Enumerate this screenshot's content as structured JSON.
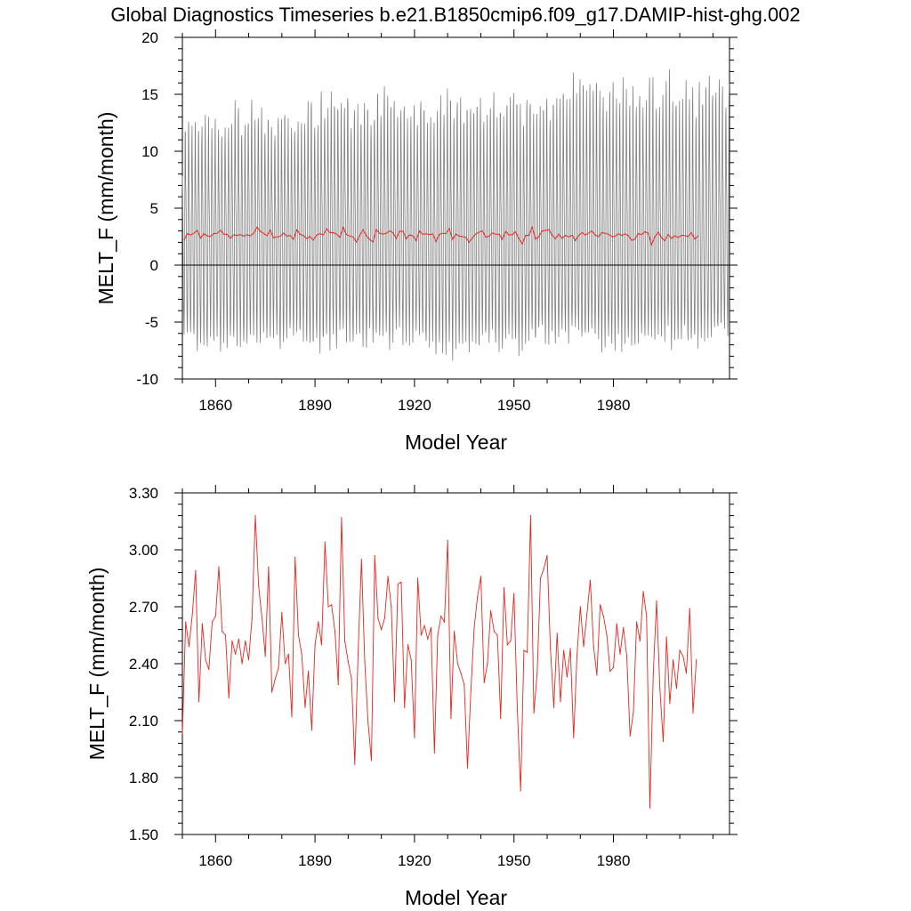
{
  "title": "Global Diagnostics Timeseries b.e21.B1850cmip6.f09_g17.DAMIP-hist-ghg.002",
  "chart_data": [
    {
      "type": "line",
      "xlabel": "Model Year",
      "ylabel": "MELT_F (mm/month)",
      "xlim": [
        1850,
        2015
      ],
      "ylim": [
        -10,
        20
      ],
      "x_ticks": [
        "1860",
        "1890",
        "1920",
        "1950",
        "1980"
      ],
      "y_ticks": [
        "-10",
        "-5",
        "0",
        "5",
        "10",
        "15",
        "20"
      ],
      "zero_line": true,
      "series": [
        {
          "color": "#808080",
          "style": "monthly values (seasonal cycle)",
          "approx_range": [
            -8.6,
            17.4
          ],
          "peaks_by_decade_start": [
            {
              "year": 1850,
              "max": 13.0,
              "min": -7.4
            },
            {
              "year": 1860,
              "max": 13.5,
              "min": -7.2
            },
            {
              "year": 1870,
              "max": 14.5,
              "min": -7.3
            },
            {
              "year": 1880,
              "max": 13.8,
              "min": -7.4
            },
            {
              "year": 1890,
              "max": 14.8,
              "min": -7.5
            },
            {
              "year": 1900,
              "max": 15.3,
              "min": -7.2
            },
            {
              "year": 1910,
              "max": 15.4,
              "min": -7.0
            },
            {
              "year": 1920,
              "max": 14.3,
              "min": -7.0
            },
            {
              "year": 1930,
              "max": 15.0,
              "min": -8.6
            },
            {
              "year": 1940,
              "max": 15.0,
              "min": -7.5
            },
            {
              "year": 1950,
              "max": 15.5,
              "min": -8.2
            },
            {
              "year": 1960,
              "max": 15.5,
              "min": -6.7
            },
            {
              "year": 1970,
              "max": 17.3,
              "min": -7.0
            },
            {
              "year": 1980,
              "max": 16.7,
              "min": -7.8
            },
            {
              "year": 1990,
              "max": 17.0,
              "min": -6.8
            },
            {
              "year": 2000,
              "max": 16.3,
              "min": -7.0
            }
          ]
        },
        {
          "color": "#e8251e",
          "style": "annual mean",
          "ref": "annual_means"
        }
      ]
    },
    {
      "type": "line",
      "xlabel": "Model Year",
      "ylabel": "MELT_F (mm/month)",
      "xlim": [
        1850,
        2015
      ],
      "ylim": [
        1.5,
        3.3
      ],
      "x_ticks": [
        "1860",
        "1890",
        "1920",
        "1950",
        "1980"
      ],
      "y_ticks": [
        "1.50",
        "1.80",
        "2.10",
        "2.40",
        "2.70",
        "3.00",
        "3.30"
      ],
      "x_start": 1850,
      "color": "#e8251e",
      "values": [
        2.03,
        2.62,
        2.49,
        2.66,
        2.89,
        2.2,
        2.61,
        2.42,
        2.37,
        2.62,
        2.65,
        2.91,
        2.57,
        2.55,
        2.22,
        2.52,
        2.45,
        2.53,
        2.4,
        2.52,
        2.42,
        2.64,
        3.18,
        2.81,
        2.64,
        2.44,
        2.91,
        2.25,
        2.32,
        2.38,
        2.67,
        2.4,
        2.45,
        2.12,
        2.96,
        2.55,
        2.45,
        2.17,
        2.36,
        2.05,
        2.5,
        2.62,
        2.5,
        3.04,
        2.7,
        2.71,
        2.57,
        2.29,
        3.17,
        2.52,
        2.41,
        2.32,
        1.87,
        2.45,
        2.95,
        2.41,
        2.09,
        1.89,
        2.97,
        2.64,
        2.58,
        2.64,
        2.86,
        2.7,
        2.2,
        2.82,
        2.83,
        2.17,
        2.5,
        2.42,
        2.01,
        2.85,
        2.55,
        2.6,
        2.53,
        2.59,
        1.93,
        2.55,
        2.65,
        2.62,
        3.05,
        2.11,
        2.57,
        2.4,
        2.35,
        2.29,
        1.85,
        2.26,
        2.59,
        2.75,
        2.86,
        2.3,
        2.4,
        2.68,
        2.57,
        2.55,
        2.11,
        2.8,
        2.5,
        2.52,
        2.77,
        2.16,
        1.73,
        2.47,
        2.46,
        3.18,
        2.14,
        2.35,
        2.85,
        2.9,
        2.97,
        2.48,
        2.17,
        2.56,
        2.2,
        2.47,
        2.33,
        2.48,
        2.01,
        2.44,
        2.7,
        2.49,
        2.66,
        2.84,
        2.49,
        2.34,
        2.71,
        2.65,
        2.55,
        2.36,
        2.38,
        2.61,
        2.45,
        2.59,
        2.44,
        2.02,
        2.14,
        2.62,
        2.52,
        2.78,
        2.65,
        1.64,
        2.35,
        2.73,
        2.27,
        1.99,
        2.54,
        2.19,
        2.42,
        2.27,
        2.47,
        2.44,
        2.35,
        2.69,
        2.14,
        2.42
      ]
    }
  ]
}
